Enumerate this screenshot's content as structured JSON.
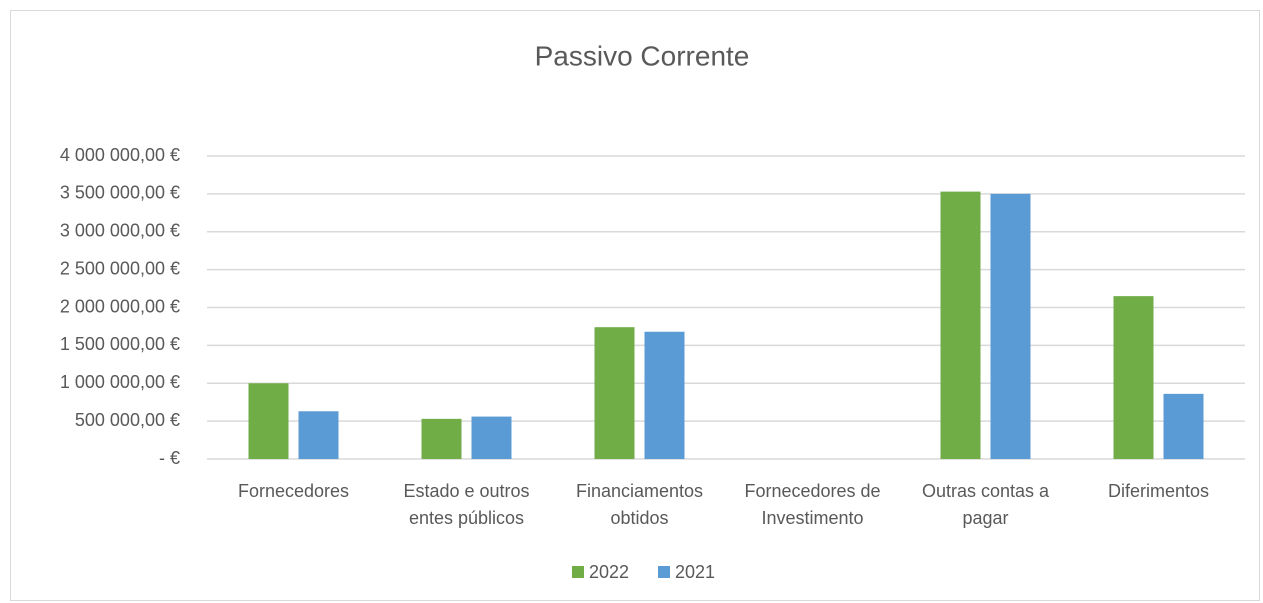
{
  "chart_data": {
    "type": "bar",
    "title": "Passivo Corrente",
    "categories": [
      "Fornecedores",
      "Estado e outros entes públicos",
      "Financiamentos obtidos",
      "Fornecedores de Investimento",
      "Outras contas a pagar",
      "Diferimentos"
    ],
    "series": [
      {
        "name": "2022",
        "color": "#70ad47",
        "values": [
          1000000,
          530000,
          1740000,
          0,
          3530000,
          2150000
        ]
      },
      {
        "name": "2021",
        "color": "#5b9bd5",
        "values": [
          630000,
          560000,
          1680000,
          0,
          3500000,
          860000
        ]
      }
    ],
    "ylim": [
      0,
      4000000
    ],
    "yticks": [
      {
        "value": 0,
        "label": "-  €"
      },
      {
        "value": 500000,
        "label": "500 000,00 €"
      },
      {
        "value": 1000000,
        "label": "1 000 000,00 €"
      },
      {
        "value": 1500000,
        "label": "1 500 000,00 €"
      },
      {
        "value": 2000000,
        "label": "2 000 000,00 €"
      },
      {
        "value": 2500000,
        "label": "2 500 000,00 €"
      },
      {
        "value": 3000000,
        "label": "3 000 000,00 €"
      },
      {
        "value": 3500000,
        "label": "3 500 000,00 €"
      },
      {
        "value": 4000000,
        "label": "4 000 000,00 €"
      }
    ],
    "grid": true,
    "legend": "bottom"
  }
}
